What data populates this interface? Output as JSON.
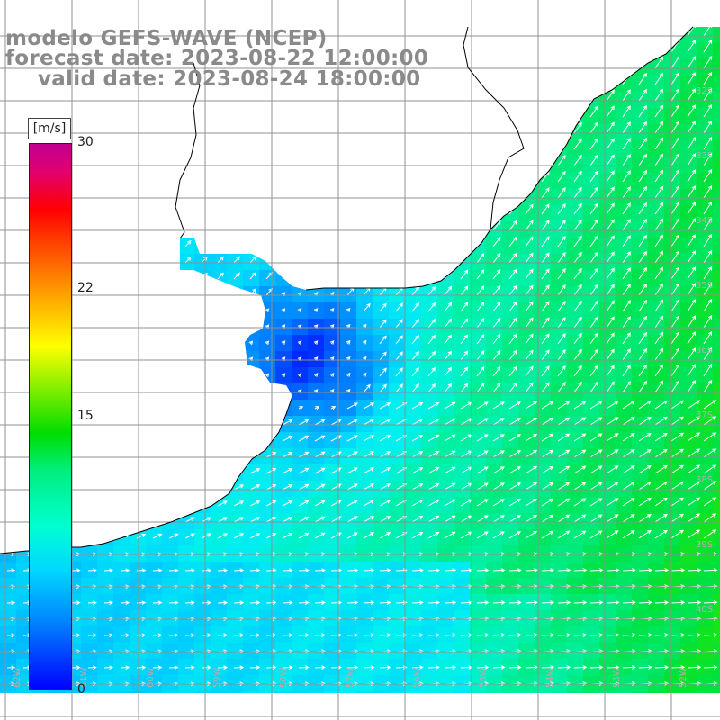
{
  "title": {
    "line1": "modelo GEFS-WAVE (NCEP)",
    "line2": "forecast date: 2023-08-22 12:00:00",
    "line3": "valid date: 2023-08-24 18:00:00"
  },
  "colorbar": {
    "unit": "[m/s]",
    "ticks": [
      "30",
      "22",
      "15",
      "0"
    ],
    "tick_values": [
      30,
      22,
      15,
      0
    ],
    "range": [
      0,
      30
    ]
  },
  "map": {
    "variable": "wind speed with direction arrows",
    "land_color": "#ffffff",
    "grid_color": "#909090",
    "coast_color": "#000000",
    "arrow_color": "#ffffff",
    "right_edge_labels": [
      "32S",
      "33S",
      "34S",
      "35S",
      "36S",
      "37S",
      "38S",
      "39S",
      "40S"
    ],
    "bottom_edge_labels": [
      "62W",
      "61W",
      "60W",
      "59W",
      "58W",
      "57W",
      "56W",
      "55W",
      "54W",
      "53W",
      "52W"
    ]
  }
}
